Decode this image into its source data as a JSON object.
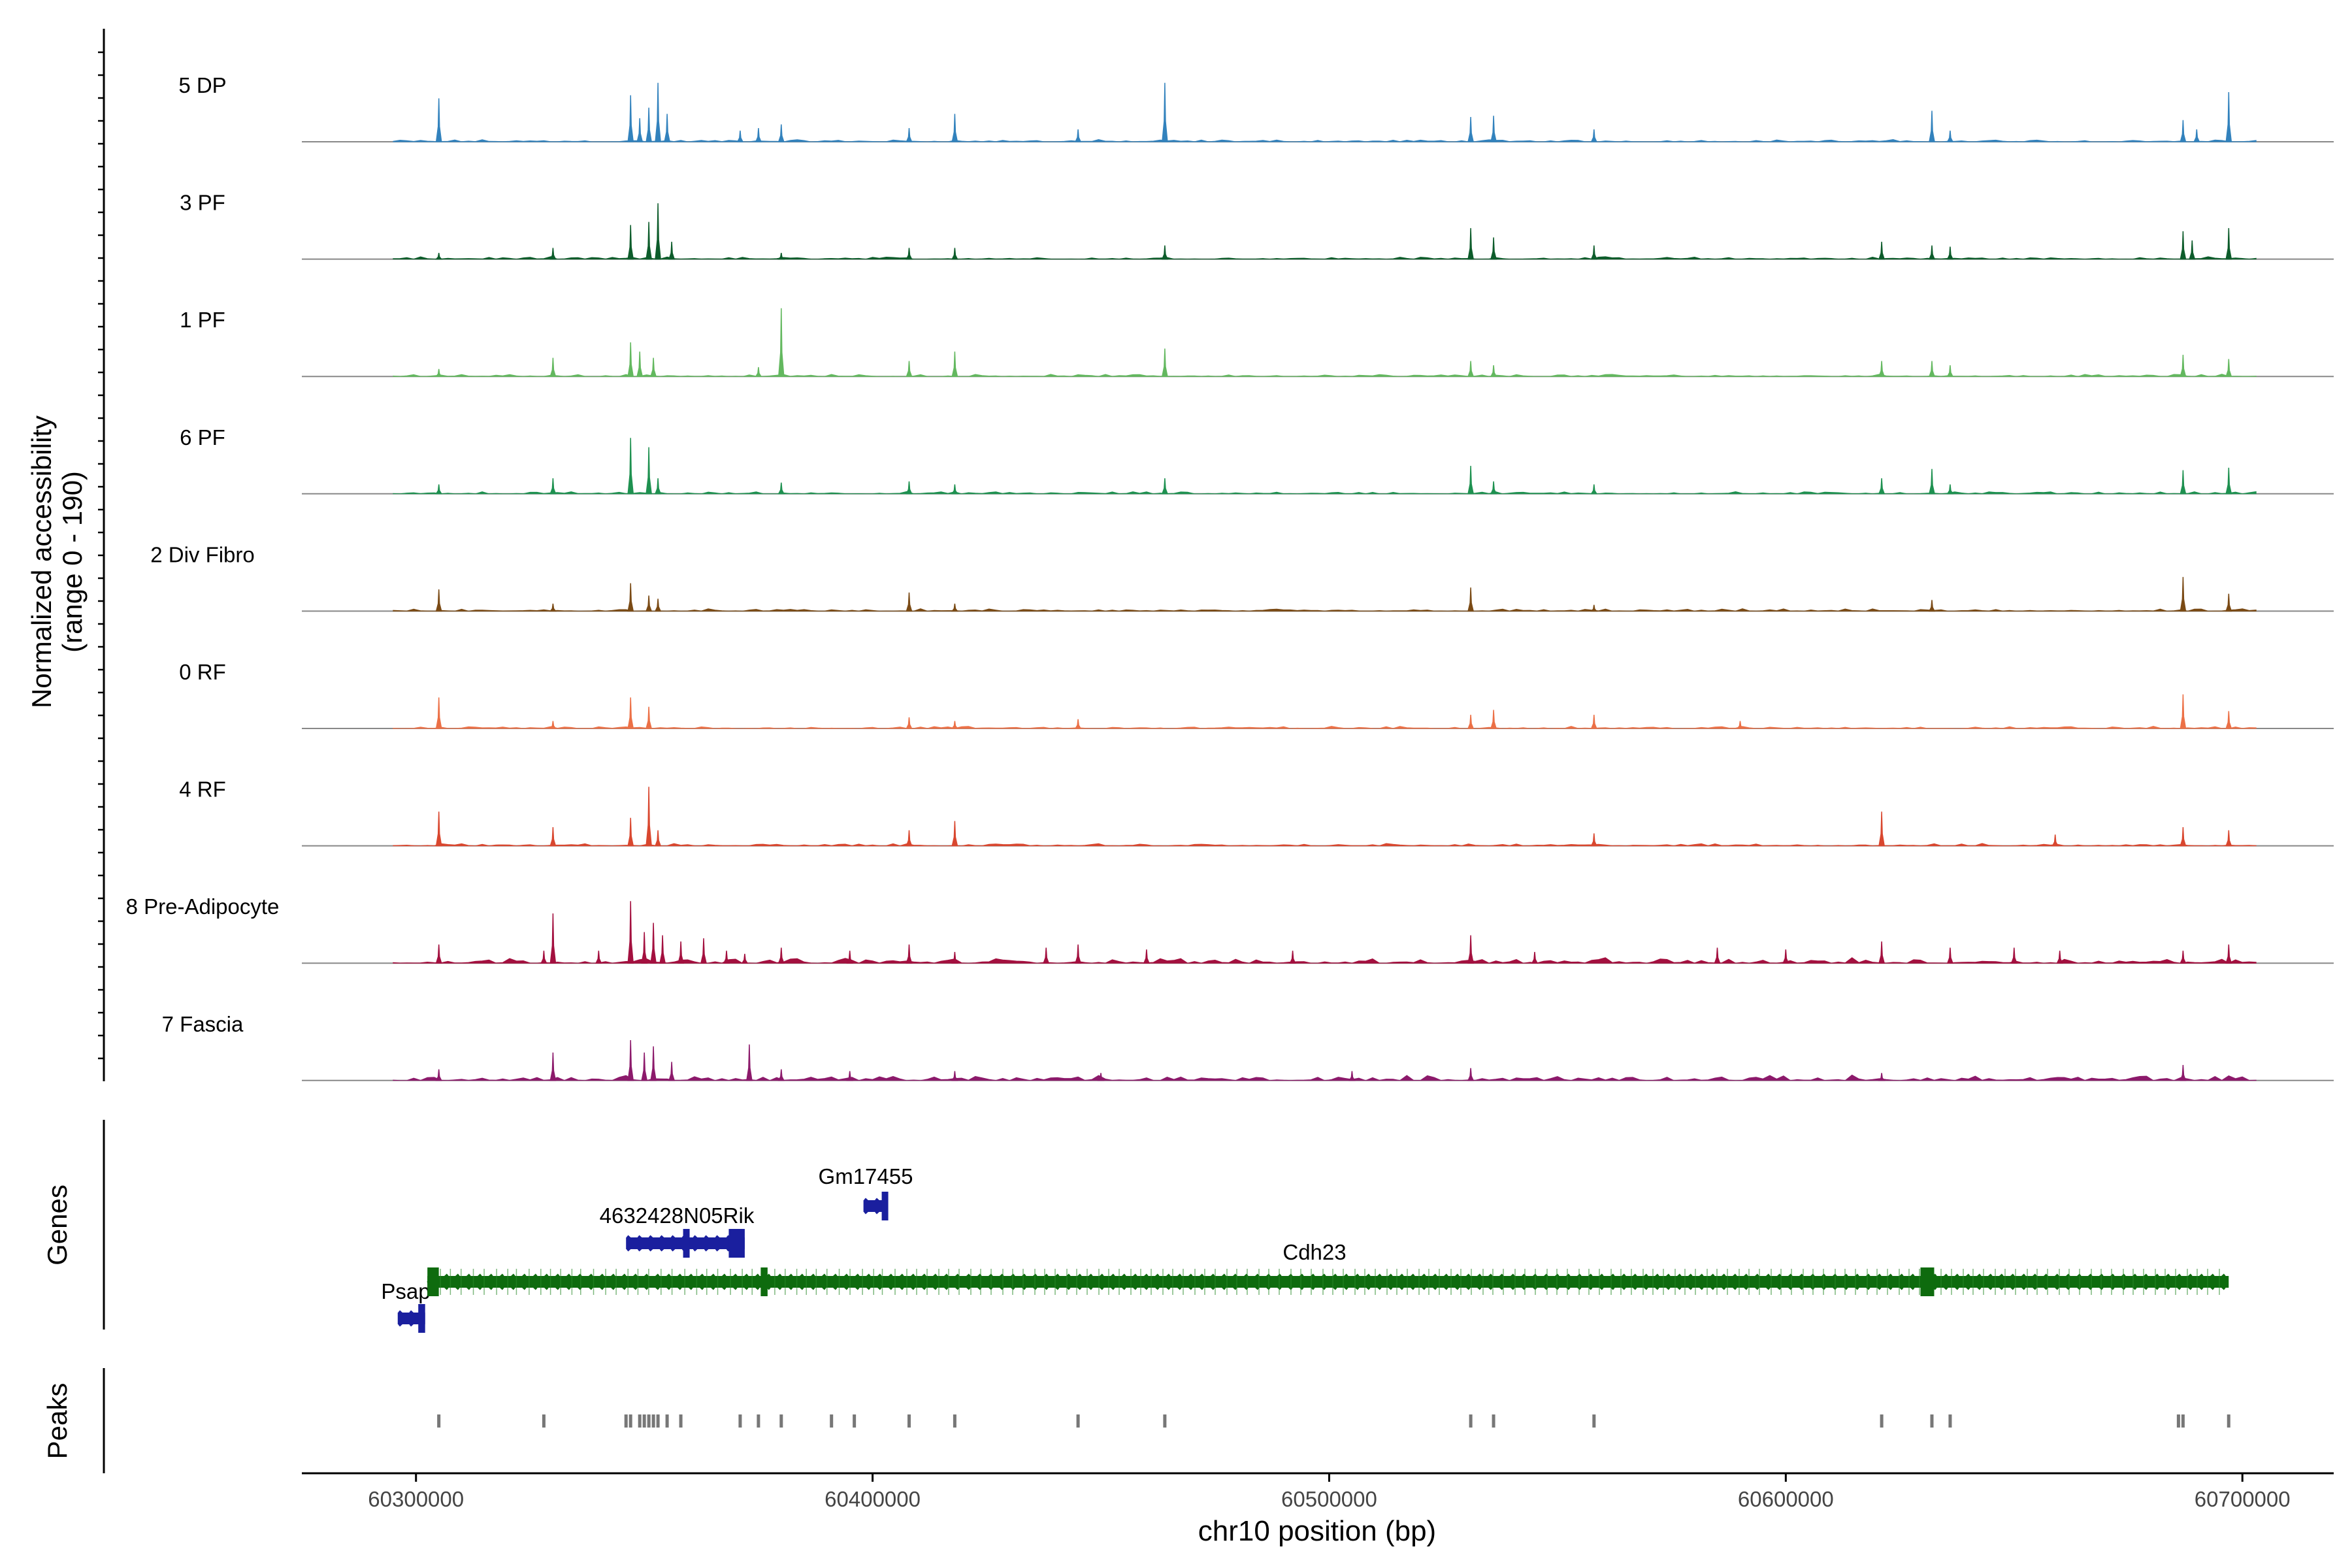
{
  "chart_data": {
    "type": "area",
    "title": "",
    "ylabel_line1": "Normalized accessibility",
    "ylabel_line2": "(range 0 - 190)",
    "y_range": [
      0,
      190
    ],
    "xlabel": "chr10 position (bp)",
    "xlim": [
      60275000,
      60720000
    ],
    "x_ticks": [
      60300000,
      60400000,
      60500000,
      60600000,
      60700000
    ],
    "x_tick_labels": [
      "60300000",
      "60400000",
      "60500000",
      "60600000",
      "60700000"
    ],
    "genes_label": "Genes",
    "peaks_label": "Peaks",
    "tracks": [
      {
        "name": "5 DP",
        "color": "#3282bd",
        "peaks": [
          [
            60305000,
            70
          ],
          [
            60347000,
            75
          ],
          [
            60349000,
            38
          ],
          [
            60351000,
            55
          ],
          [
            60353000,
            95
          ],
          [
            60355000,
            45
          ],
          [
            60371000,
            18
          ],
          [
            60375000,
            22
          ],
          [
            60380000,
            28
          ],
          [
            60408000,
            22
          ],
          [
            60418000,
            45
          ],
          [
            60445000,
            20
          ],
          [
            60464000,
            95
          ],
          [
            60531000,
            40
          ],
          [
            60536000,
            42
          ],
          [
            60558000,
            20
          ],
          [
            60632000,
            50
          ],
          [
            60636000,
            18
          ],
          [
            60687000,
            35
          ],
          [
            60690000,
            20
          ],
          [
            60697000,
            80
          ]
        ]
      },
      {
        "name": "3 PF",
        "color": "#0d5c2b",
        "peaks": [
          [
            60305000,
            10
          ],
          [
            60330000,
            18
          ],
          [
            60347000,
            55
          ],
          [
            60351000,
            60
          ],
          [
            60353000,
            90
          ],
          [
            60356000,
            28
          ],
          [
            60380000,
            10
          ],
          [
            60408000,
            18
          ],
          [
            60418000,
            18
          ],
          [
            60464000,
            22
          ],
          [
            60531000,
            50
          ],
          [
            60536000,
            35
          ],
          [
            60558000,
            22
          ],
          [
            60621000,
            28
          ],
          [
            60632000,
            22
          ],
          [
            60636000,
            20
          ],
          [
            60687000,
            45
          ],
          [
            60689000,
            30
          ],
          [
            60697000,
            50
          ]
        ]
      },
      {
        "name": "1 PF",
        "color": "#63b85f",
        "peaks": [
          [
            60305000,
            12
          ],
          [
            60330000,
            30
          ],
          [
            60347000,
            55
          ],
          [
            60349000,
            40
          ],
          [
            60352000,
            30
          ],
          [
            60375000,
            15
          ],
          [
            60380000,
            110
          ],
          [
            60408000,
            25
          ],
          [
            60418000,
            40
          ],
          [
            60464000,
            45
          ],
          [
            60531000,
            25
          ],
          [
            60536000,
            18
          ],
          [
            60621000,
            25
          ],
          [
            60632000,
            25
          ],
          [
            60636000,
            18
          ],
          [
            60687000,
            35
          ],
          [
            60697000,
            28
          ]
        ]
      },
      {
        "name": "6 PF",
        "color": "#1e9150",
        "peaks": [
          [
            60305000,
            15
          ],
          [
            60330000,
            25
          ],
          [
            60347000,
            90
          ],
          [
            60351000,
            75
          ],
          [
            60353000,
            25
          ],
          [
            60380000,
            18
          ],
          [
            60408000,
            20
          ],
          [
            60418000,
            15
          ],
          [
            60464000,
            25
          ],
          [
            60531000,
            45
          ],
          [
            60536000,
            20
          ],
          [
            60558000,
            15
          ],
          [
            60621000,
            25
          ],
          [
            60632000,
            40
          ],
          [
            60636000,
            15
          ],
          [
            60687000,
            38
          ],
          [
            60697000,
            42
          ]
        ]
      },
      {
        "name": "2 Div Fibro",
        "color": "#7a4a15",
        "peaks": [
          [
            60305000,
            35
          ],
          [
            60330000,
            12
          ],
          [
            60347000,
            45
          ],
          [
            60351000,
            25
          ],
          [
            60353000,
            20
          ],
          [
            60408000,
            30
          ],
          [
            60418000,
            12
          ],
          [
            60531000,
            38
          ],
          [
            60558000,
            10
          ],
          [
            60632000,
            18
          ],
          [
            60687000,
            55
          ],
          [
            60697000,
            28
          ]
        ]
      },
      {
        "name": "0 RF",
        "color": "#ec7046",
        "peaks": [
          [
            60305000,
            50
          ],
          [
            60330000,
            12
          ],
          [
            60347000,
            50
          ],
          [
            60351000,
            35
          ],
          [
            60408000,
            18
          ],
          [
            60418000,
            12
          ],
          [
            60445000,
            15
          ],
          [
            60531000,
            22
          ],
          [
            60536000,
            30
          ],
          [
            60558000,
            22
          ],
          [
            60590000,
            12
          ],
          [
            60687000,
            55
          ],
          [
            60697000,
            28
          ]
        ]
      },
      {
        "name": "4 RF",
        "color": "#d9472f",
        "peaks": [
          [
            60305000,
            55
          ],
          [
            60330000,
            30
          ],
          [
            60347000,
            45
          ],
          [
            60351000,
            95
          ],
          [
            60353000,
            25
          ],
          [
            60408000,
            25
          ],
          [
            60418000,
            40
          ],
          [
            60558000,
            20
          ],
          [
            60621000,
            55
          ],
          [
            60659000,
            18
          ],
          [
            60687000,
            30
          ],
          [
            60697000,
            25
          ]
        ]
      },
      {
        "name": "8 Pre-Adipocyte",
        "color": "#a3103f",
        "peaks": [
          [
            60305000,
            30
          ],
          [
            60328000,
            20
          ],
          [
            60330000,
            80
          ],
          [
            60340000,
            20
          ],
          [
            60347000,
            100
          ],
          [
            60350000,
            50
          ],
          [
            60352000,
            65
          ],
          [
            60354000,
            45
          ],
          [
            60358000,
            35
          ],
          [
            60363000,
            40
          ],
          [
            60368000,
            20
          ],
          [
            60372000,
            15
          ],
          [
            60380000,
            25
          ],
          [
            60395000,
            20
          ],
          [
            60408000,
            30
          ],
          [
            60418000,
            18
          ],
          [
            60438000,
            25
          ],
          [
            60445000,
            30
          ],
          [
            60460000,
            22
          ],
          [
            60492000,
            20
          ],
          [
            60531000,
            45
          ],
          [
            60545000,
            18
          ],
          [
            60585000,
            25
          ],
          [
            60600000,
            22
          ],
          [
            60621000,
            35
          ],
          [
            60636000,
            25
          ],
          [
            60650000,
            25
          ],
          [
            60660000,
            20
          ],
          [
            60687000,
            20
          ],
          [
            60697000,
            30
          ]
        ]
      },
      {
        "name": "7 Fascia",
        "color": "#8c1a6b",
        "peaks": [
          [
            60305000,
            18
          ],
          [
            60330000,
            45
          ],
          [
            60347000,
            65
          ],
          [
            60350000,
            45
          ],
          [
            60352000,
            55
          ],
          [
            60356000,
            30
          ],
          [
            60373000,
            58
          ],
          [
            60380000,
            18
          ],
          [
            60395000,
            15
          ],
          [
            60418000,
            15
          ],
          [
            60450000,
            12
          ],
          [
            60505000,
            15
          ],
          [
            60531000,
            20
          ],
          [
            60621000,
            12
          ],
          [
            60687000,
            25
          ]
        ]
      }
    ],
    "genes": [
      {
        "name": "Psap",
        "start": 60296000,
        "end": 60302000,
        "strand": "+",
        "color": "#1a1f9e",
        "exons": [
          [
            60300500,
            60302000
          ]
        ],
        "label_pos": [
          60299000,
          "left"
        ]
      },
      {
        "name": "4632428N05Rik",
        "start": 60346000,
        "end": 60372000,
        "strand": "+",
        "color": "#1a1f9e",
        "exons": [
          [
            60358500,
            60359000
          ],
          [
            60368500,
            60372000
          ]
        ],
        "label_pos": [
          60358000,
          "above"
        ]
      },
      {
        "name": "Gm17455",
        "start": 60398000,
        "end": 60403000,
        "strand": "+",
        "color": "#1a1f9e",
        "exons": [
          [
            60402000,
            60403000
          ]
        ],
        "label_pos": [
          60396000,
          "above"
        ]
      },
      {
        "name": "Cdh23",
        "start": 60302500,
        "end": 60697000,
        "strand": "-",
        "color": "#0e6b0e",
        "exons": [
          [
            60302500,
            60305000
          ],
          [
            60375500,
            60377000
          ],
          [
            60629500,
            60632500
          ]
        ],
        "label_pos": [
          60499000,
          "above"
        ]
      }
    ],
    "peak_regions": [
      60305000,
      60328000,
      60346000,
      60347000,
      60349000,
      60350000,
      60351000,
      60352000,
      60353000,
      60355000,
      60358000,
      60371000,
      60375000,
      60380000,
      60391000,
      60396000,
      60408000,
      60418000,
      60445000,
      60464000,
      60531000,
      60536000,
      60558000,
      60621000,
      60632000,
      60636000,
      60686000,
      60687000,
      60697000
    ]
  }
}
